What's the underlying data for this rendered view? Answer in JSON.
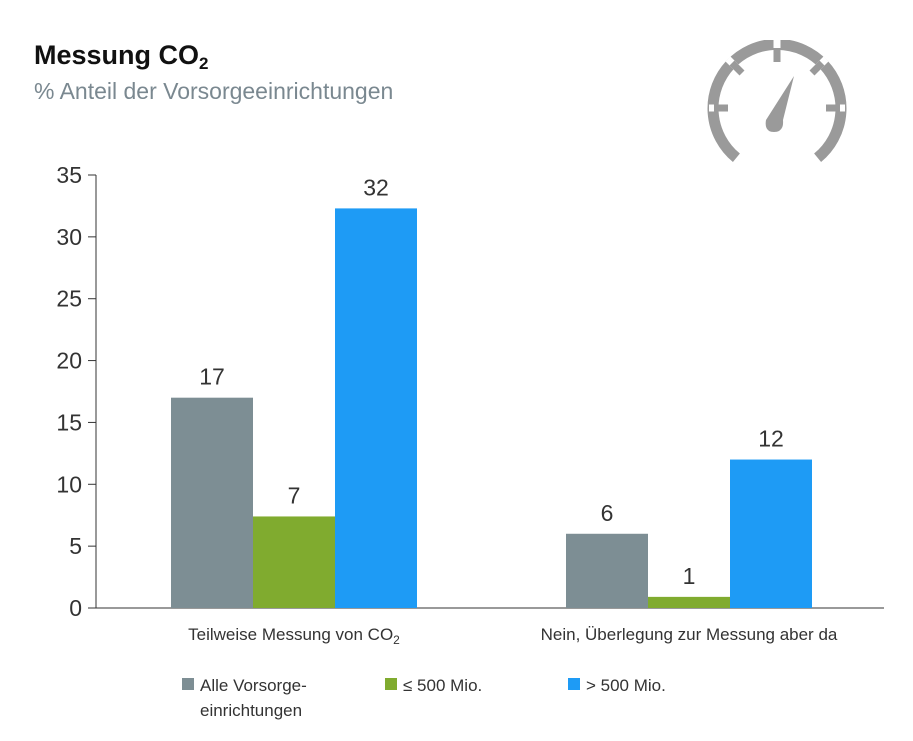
{
  "title": {
    "main": "Messung CO",
    "sub": "2"
  },
  "subtitle": "% Anteil der Vorsorgeeinrichtungen",
  "icon": "speedometer-icon",
  "colors": {
    "all": "#7d8e94",
    "small": "#80ab2f",
    "large": "#1e9bf5",
    "icon": "#9a9a9a",
    "axis": "#333333"
  },
  "legend": [
    {
      "name": "Alle Vorsorge-",
      "name2": "einrichtungen"
    },
    {
      "name": "≤ 500 Mio."
    },
    {
      "name": "> 500 Mio."
    }
  ],
  "chart_data": {
    "type": "bar",
    "categories": [
      {
        "label": "Teilweise Messung von CO",
        "sub": "2"
      },
      {
        "label": "Nein, Überlegung zur Messung aber da",
        "sub": ""
      }
    ],
    "series": [
      {
        "name": "Alle Vorsorgeeinrichtungen",
        "values": [
          17,
          6
        ],
        "labels": [
          "17",
          "6"
        ]
      },
      {
        "name": "≤ 500 Mio.",
        "values": [
          7.4,
          0.9
        ],
        "labels": [
          "7",
          "1"
        ]
      },
      {
        "name": "> 500 Mio.",
        "values": [
          32.3,
          12
        ],
        "labels": [
          "32",
          "12"
        ]
      }
    ],
    "ylim": [
      0,
      35
    ],
    "yticks": [
      "0",
      "5",
      "10",
      "15",
      "20",
      "25",
      "30",
      "35"
    ],
    "grid": false,
    "legend_position": "bottom"
  }
}
